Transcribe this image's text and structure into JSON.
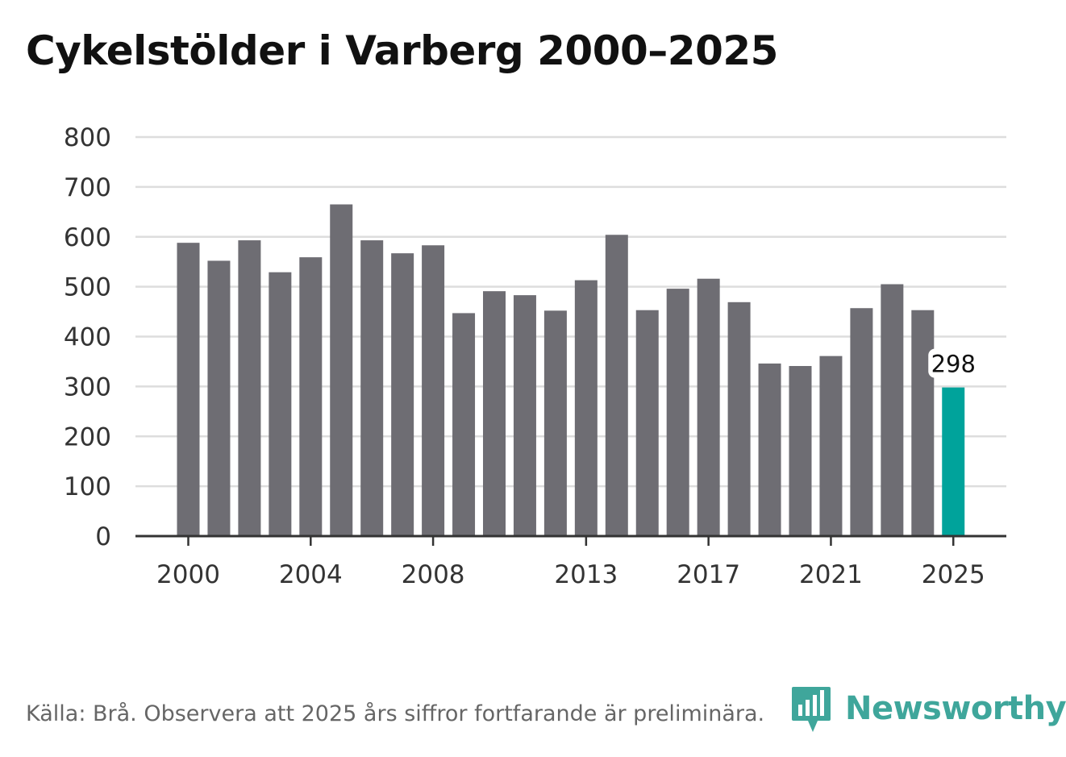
{
  "title": "Cykelstölder i Varberg 2000–2025",
  "source": "Källa: Brå. Observera att 2025 års siffror fortfarande är preliminära.",
  "logo": {
    "name": "Newsworthy",
    "icon": "bar-chart-speech-icon"
  },
  "colors": {
    "bar": "#6e6d73",
    "highlight": "#00a39b",
    "grid": "#dddddd",
    "axis": "#333333",
    "text": "#333333",
    "logo": "#3fa69b"
  },
  "chart_data": {
    "type": "bar",
    "title": "Cykelstölder i Varberg 2000–2025",
    "xlabel": "",
    "ylabel": "",
    "ylim": [
      0,
      800
    ],
    "yticks": [
      0,
      100,
      200,
      300,
      400,
      500,
      600,
      700,
      800
    ],
    "xticks": [
      "2000",
      "2004",
      "2008",
      "2013",
      "2017",
      "2021",
      "2025"
    ],
    "categories": [
      "2000",
      "2001",
      "2002",
      "2003",
      "2004",
      "2005",
      "2006",
      "2007",
      "2008",
      "2009",
      "2010",
      "2011",
      "2012",
      "2013",
      "2014",
      "2015",
      "2016",
      "2017",
      "2018",
      "2019",
      "2020",
      "2021",
      "2022",
      "2023",
      "2024",
      "2025"
    ],
    "values": [
      588,
      552,
      593,
      529,
      559,
      665,
      593,
      567,
      583,
      447,
      491,
      483,
      452,
      513,
      604,
      453,
      496,
      516,
      469,
      346,
      341,
      361,
      457,
      505,
      453,
      298
    ],
    "highlight_index": 25,
    "annotations": [
      {
        "category": "2025",
        "label": "298"
      }
    ],
    "grid": true,
    "legend": "none"
  }
}
